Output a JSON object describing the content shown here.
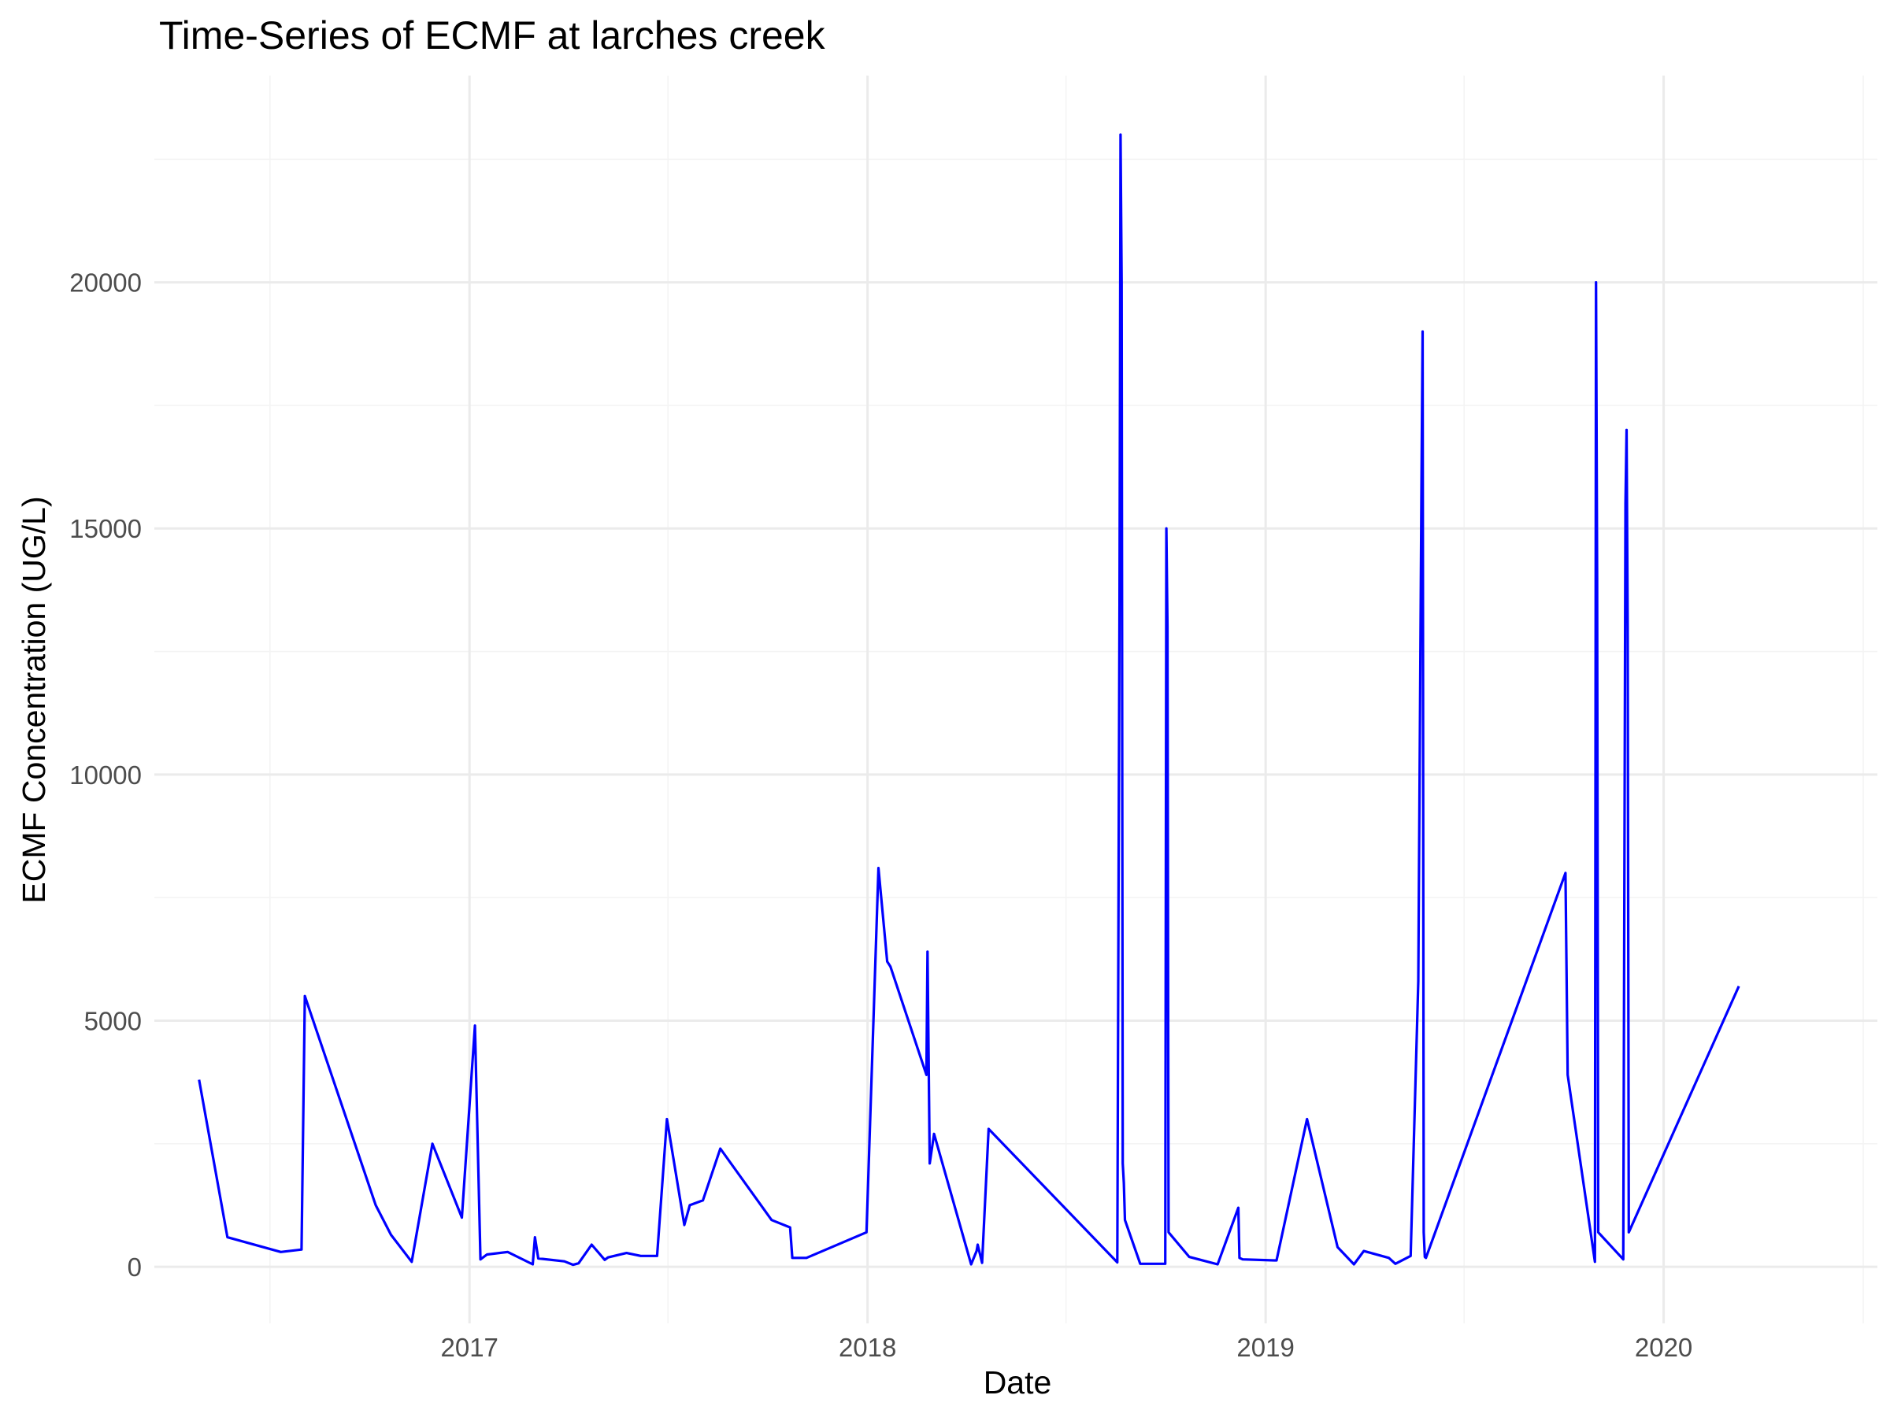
{
  "chart_data": {
    "type": "line",
    "title": "Time-Series of ECMF at larches creek",
    "xlabel": "Date",
    "ylabel": "ECMF Concentration (UG/L)",
    "x_tick_labels": [
      "2017",
      "2018",
      "2019",
      "2020"
    ],
    "y_tick_labels": [
      "0",
      "5000",
      "10000",
      "15000",
      "20000"
    ],
    "xlim": [
      "2016-03-18",
      "2020-07-15"
    ],
    "ylim": [
      -1150,
      24200
    ],
    "grid": true,
    "legend": "none",
    "colors": {
      "series": "#0000ff",
      "grid_major": "#ebebeb",
      "grid_minor": "#f4f4f4",
      "tick_text": "#4d4d4d",
      "background": "#ffffff"
    },
    "series": [
      {
        "x": [
          "2016-04-28",
          "2016-05-24",
          "2016-07-12",
          "2016-07-31",
          "2016-08-03",
          "2016-10-07",
          "2016-10-21",
          "2016-11-09",
          "2016-11-28",
          "2016-12-25",
          "2017-01-06",
          "2017-01-11",
          "2017-01-17",
          "2017-02-05",
          "2017-02-28",
          "2017-03-02",
          "2017-03-05",
          "2017-03-29",
          "2017-04-06",
          "2017-04-11",
          "2017-04-23",
          "2017-05-05",
          "2017-05-08",
          "2017-05-25",
          "2017-06-07",
          "2017-06-22",
          "2017-07-01",
          "2017-07-17",
          "2017-07-22",
          "2017-08-03",
          "2017-08-19",
          "2017-10-05",
          "2017-10-22",
          "2017-10-24",
          "2017-11-06",
          "2017-12-31",
          "2018-01-11",
          "2018-01-19",
          "2018-01-22",
          "2018-02-24",
          "2018-02-25",
          "2018-02-27",
          "2018-03-03",
          "2018-04-06",
          "2018-04-11",
          "2018-04-12",
          "2018-04-16",
          "2018-04-22",
          "2018-08-18",
          "2018-08-20",
          "2018-08-21",
          "2018-08-22",
          "2018-08-23",
          "2018-08-24",
          "2018-08-25",
          "2018-09-08",
          "2018-10-01",
          "2018-10-02",
          "2018-10-03",
          "2018-10-04",
          "2018-10-23",
          "2018-11-18",
          "2018-12-07",
          "2018-12-08",
          "2018-12-11",
          "2019-01-09",
          "2019-01-11",
          "2019-02-08",
          "2019-03-08",
          "2019-03-23",
          "2019-04-01",
          "2019-04-24",
          "2019-04-30",
          "2019-05-14",
          "2019-05-21",
          "2019-05-24",
          "2019-05-25",
          "2019-05-26",
          "2019-05-27",
          "2019-05-28",
          "2019-10-03",
          "2019-10-05",
          "2019-10-30",
          "2019-10-31",
          "2019-11-01",
          "2019-11-02",
          "2019-11-25",
          "2019-11-27",
          "2019-11-28",
          "2019-11-29",
          "2019-11-30",
          "2020-03-10"
        ],
        "values": [
          3800,
          600,
          300,
          350,
          5500,
          1250,
          650,
          100,
          2500,
          1000,
          4900,
          150,
          250,
          300,
          50,
          600,
          170,
          110,
          40,
          70,
          450,
          140,
          190,
          280,
          220,
          220,
          3000,
          850,
          1250,
          1350,
          2400,
          950,
          800,
          180,
          180,
          700,
          8100,
          6200,
          6100,
          3900,
          6400,
          2100,
          2700,
          50,
          320,
          450,
          80,
          2800,
          90,
          13500,
          23000,
          20000,
          2100,
          1700,
          950,
          60,
          60,
          15000,
          13000,
          700,
          200,
          50,
          1200,
          180,
          150,
          130,
          130,
          3000,
          400,
          50,
          320,
          180,
          60,
          220,
          5800,
          16000,
          19000,
          700,
          200,
          180,
          8000,
          3900,
          100,
          20000,
          14000,
          700,
          150,
          15500,
          17000,
          13000,
          700,
          5700
        ]
      }
    ]
  }
}
